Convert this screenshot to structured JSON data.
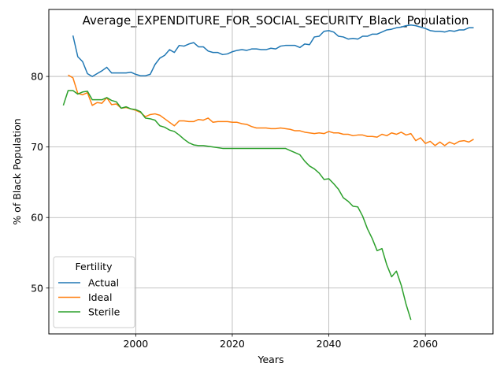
{
  "chart_data": {
    "type": "line",
    "title": "Average_EXPENDITURE_FOR_SOCIAL_SECURITY_Black_Population",
    "xlabel": "Years",
    "ylabel": "% of Black Population",
    "xlim": [
      1982,
      2074
    ],
    "ylim": [
      43.5,
      89.5
    ],
    "xticks": [
      2000,
      2020,
      2040,
      2060
    ],
    "xtick_labels": [
      "2000",
      "2020",
      "2040",
      "2060"
    ],
    "yticks": [
      50,
      60,
      70,
      80
    ],
    "ytick_labels": [
      "50",
      "60",
      "70",
      "80"
    ],
    "grid": true,
    "legend": {
      "title": "Fertility",
      "position": "lower-left"
    },
    "series": [
      {
        "name": "Actual",
        "color": "#1f77b4",
        "x": [
          1987,
          1988,
          1989,
          1990,
          1991,
          1992,
          1993,
          1994,
          1995,
          1996,
          1997,
          1998,
          1999,
          2000,
          2001,
          2002,
          2003,
          2004,
          2005,
          2006,
          2007,
          2008,
          2009,
          2010,
          2011,
          2012,
          2013,
          2014,
          2015,
          2016,
          2017,
          2018,
          2019,
          2020,
          2021,
          2022,
          2023,
          2024,
          2025,
          2026,
          2027,
          2028,
          2029,
          2030,
          2031,
          2032,
          2033,
          2034,
          2035,
          2036,
          2037,
          2038,
          2039,
          2040,
          2041,
          2042,
          2043,
          2044,
          2045,
          2046,
          2047,
          2048,
          2049,
          2050,
          2051,
          2052,
          2053,
          2054,
          2055,
          2056,
          2057,
          2058,
          2059,
          2060,
          2061,
          2062,
          2063,
          2064,
          2065,
          2066,
          2067,
          2068,
          2069,
          2070
        ],
        "y": [
          85.8,
          82.8,
          82.1,
          80.4,
          80.0,
          80.4,
          80.8,
          81.3,
          80.5,
          80.5,
          80.5,
          80.5,
          80.6,
          80.3,
          80.1,
          80.1,
          80.3,
          81.7,
          82.6,
          83.0,
          83.8,
          83.4,
          84.4,
          84.3,
          84.6,
          84.8,
          84.2,
          84.2,
          83.6,
          83.4,
          83.4,
          83.1,
          83.2,
          83.5,
          83.7,
          83.8,
          83.7,
          83.9,
          83.9,
          83.8,
          83.8,
          84.0,
          83.9,
          84.3,
          84.4,
          84.4,
          84.4,
          84.1,
          84.6,
          84.5,
          85.6,
          85.7,
          86.4,
          86.5,
          86.3,
          85.7,
          85.6,
          85.3,
          85.4,
          85.3,
          85.7,
          85.7,
          86.0,
          86.0,
          86.3,
          86.6,
          86.7,
          86.9,
          87.0,
          87.2,
          87.3,
          87.2,
          87.0,
          86.8,
          86.5,
          86.4,
          86.4,
          86.3,
          86.5,
          86.4,
          86.6,
          86.6,
          86.9,
          86.9
        ]
      },
      {
        "name": "Ideal",
        "color": "#ff7f0e",
        "x": [
          1986,
          1987,
          1988,
          1989,
          1990,
          1991,
          1992,
          1993,
          1994,
          1995,
          1996,
          1997,
          1998,
          1999,
          2000,
          2001,
          2002,
          2003,
          2004,
          2005,
          2006,
          2007,
          2008,
          2009,
          2010,
          2011,
          2012,
          2013,
          2014,
          2015,
          2016,
          2017,
          2018,
          2019,
          2020,
          2021,
          2022,
          2023,
          2024,
          2025,
          2026,
          2027,
          2028,
          2029,
          2030,
          2031,
          2032,
          2033,
          2034,
          2035,
          2036,
          2037,
          2038,
          2039,
          2040,
          2041,
          2042,
          2043,
          2044,
          2045,
          2046,
          2047,
          2048,
          2049,
          2050,
          2051,
          2052,
          2053,
          2054,
          2055,
          2056,
          2057,
          2058,
          2059,
          2060,
          2061,
          2062,
          2063,
          2064,
          2065,
          2066,
          2067,
          2068,
          2069,
          2070
        ],
        "y": [
          80.2,
          79.8,
          77.6,
          77.4,
          77.7,
          75.9,
          76.3,
          76.2,
          77.0,
          76.0,
          76.1,
          75.5,
          75.6,
          75.4,
          75.2,
          74.9,
          74.3,
          74.6,
          74.7,
          74.5,
          74.0,
          73.5,
          73.0,
          73.7,
          73.7,
          73.6,
          73.6,
          73.9,
          73.8,
          74.1,
          73.5,
          73.6,
          73.6,
          73.6,
          73.5,
          73.5,
          73.3,
          73.2,
          72.9,
          72.7,
          72.7,
          72.7,
          72.6,
          72.6,
          72.7,
          72.6,
          72.5,
          72.3,
          72.3,
          72.1,
          72.0,
          71.9,
          72.0,
          71.9,
          72.2,
          72.0,
          72.0,
          71.8,
          71.8,
          71.6,
          71.7,
          71.7,
          71.5,
          71.5,
          71.4,
          71.8,
          71.6,
          72.0,
          71.8,
          72.1,
          71.7,
          71.9,
          70.9,
          71.3,
          70.5,
          70.8,
          70.2,
          70.7,
          70.2,
          70.7,
          70.4,
          70.8,
          70.9,
          70.7,
          71.1
        ]
      },
      {
        "name": "Sterile",
        "color": "#2ca02c",
        "x": [
          1985,
          1986,
          1987,
          1988,
          1989,
          1990,
          1991,
          1992,
          1993,
          1994,
          1995,
          1996,
          1997,
          1998,
          1999,
          2000,
          2001,
          2002,
          2003,
          2004,
          2005,
          2006,
          2007,
          2008,
          2009,
          2010,
          2011,
          2012,
          2013,
          2014,
          2015,
          2016,
          2017,
          2018,
          2019,
          2020,
          2021,
          2022,
          2023,
          2024,
          2025,
          2026,
          2027,
          2028,
          2029,
          2030,
          2031,
          2032,
          2033,
          2034,
          2035,
          2036,
          2037,
          2038,
          2039,
          2040,
          2041,
          2042,
          2043,
          2044,
          2045,
          2046,
          2047,
          2048,
          2049,
          2050,
          2051,
          2052,
          2053,
          2054,
          2055,
          2056,
          2057
        ],
        "y": [
          75.9,
          78.0,
          78.0,
          77.5,
          77.8,
          77.9,
          76.7,
          76.7,
          76.7,
          77.0,
          76.6,
          76.4,
          75.5,
          75.7,
          75.4,
          75.3,
          75.0,
          74.1,
          74.0,
          73.8,
          73.0,
          72.8,
          72.4,
          72.2,
          71.7,
          71.1,
          70.6,
          70.3,
          70.2,
          70.2,
          70.1,
          70.0,
          69.9,
          69.8,
          69.8,
          69.8,
          69.8,
          69.8,
          69.8,
          69.8,
          69.8,
          69.8,
          69.8,
          69.8,
          69.8,
          69.8,
          69.8,
          69.5,
          69.2,
          68.9,
          68.0,
          67.3,
          66.9,
          66.3,
          65.4,
          65.5,
          64.8,
          64.0,
          62.8,
          62.3,
          61.6,
          61.5,
          60.2,
          58.4,
          57.0,
          55.3,
          55.6,
          53.3,
          51.6,
          52.4,
          50.4,
          47.7,
          45.5
        ]
      }
    ]
  }
}
